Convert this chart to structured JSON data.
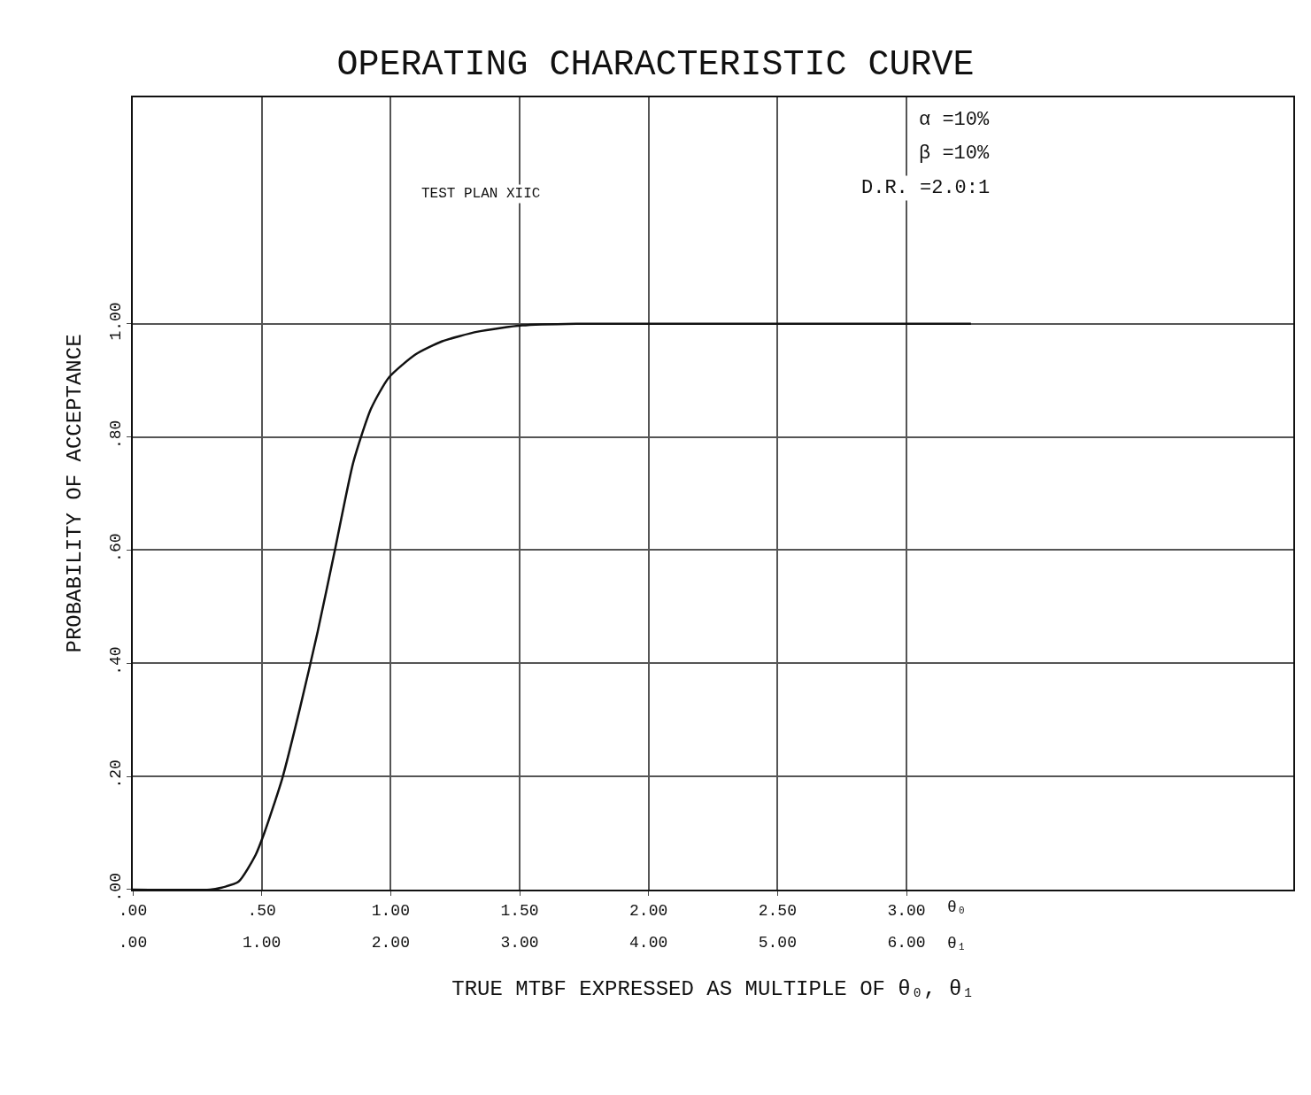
{
  "chart_data": {
    "type": "line",
    "title": "OPERATING CHARACTERISTIC CURVE",
    "xlabel": "TRUE MTBF EXPRESSED AS MULTIPLE OF θ₀, θ₁",
    "ylabel": "PROBABILITY OF ACCEPTANCE",
    "annotations": [
      "TEST PLAN XIIC",
      "α =10%",
      "β =10%",
      "D.R. =2.0:1",
      "θ₀",
      "θ₁"
    ],
    "x": [
      0,
      0.3,
      0.34,
      0.41,
      0.476,
      0.51,
      0.58,
      0.648,
      0.717,
      0.786,
      0.855,
      0.924,
      0.993,
      1.097,
      1.2,
      1.338,
      1.51,
      1.72,
      3.25
    ],
    "series": [
      {
        "color": "#111111",
        "values": [
          0,
          0,
          0.003,
          0.014,
          0.061,
          0.1,
          0.197,
          0.32,
          0.456,
          0.605,
          0.755,
          0.85,
          0.905,
          0.946,
          0.969,
          0.986,
          0.997,
          1.0,
          1.0
        ]
      }
    ],
    "xlim": [
      0,
      4.5
    ],
    "ylim": [
      0,
      1.4
    ],
    "xticks": [
      {
        "value": 0,
        "label": ".00"
      },
      {
        "value": 0.5,
        "label": ".50"
      },
      {
        "value": 1,
        "label": "1.00"
      },
      {
        "value": 1.5,
        "label": "1.50"
      },
      {
        "value": 2,
        "label": "2.00"
      },
      {
        "value": 2.5,
        "label": "2.50"
      },
      {
        "value": 3,
        "label": "3.00"
      }
    ],
    "x2lim": [
      0,
      9
    ],
    "x2ticks": [
      {
        "value": 0,
        "label": ".00"
      },
      {
        "value": 1,
        "label": "1.00"
      },
      {
        "value": 2,
        "label": "2.00"
      },
      {
        "value": 3,
        "label": "3.00"
      },
      {
        "value": 4,
        "label": "4.00"
      },
      {
        "value": 5,
        "label": "5.00"
      },
      {
        "value": 6,
        "label": "6.00"
      }
    ],
    "yticks": [
      {
        "value": 0,
        "label": ".00"
      },
      {
        "value": 0.2,
        "label": ".20"
      },
      {
        "value": 0.4,
        "label": ".40"
      },
      {
        "value": 0.6,
        "label": ".60"
      },
      {
        "value": 0.8,
        "label": ".80"
      },
      {
        "value": 1,
        "label": "1.00"
      }
    ],
    "grid": true,
    "legend": false,
    "marker": "none",
    "line_style": "solid"
  }
}
